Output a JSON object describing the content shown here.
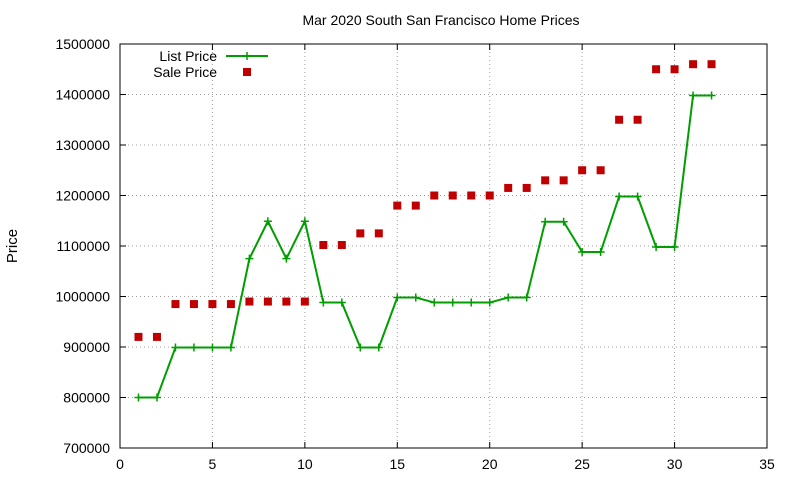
{
  "chart_data": {
    "type": "line",
    "title": "Mar 2020 South San Francisco Home Prices",
    "xlabel": "",
    "ylabel": "Price",
    "xlim": [
      0,
      35
    ],
    "ylim": [
      700000,
      1500000
    ],
    "xticks": [
      0,
      5,
      10,
      15,
      20,
      25,
      30,
      35
    ],
    "yticks": [
      700000,
      800000,
      900000,
      1000000,
      1100000,
      1200000,
      1300000,
      1400000,
      1500000
    ],
    "grid": true,
    "legend_position": "top-left",
    "x": [
      1,
      2,
      3,
      4,
      5,
      6,
      7,
      8,
      9,
      10,
      11,
      12,
      13,
      14,
      15,
      16,
      17,
      18,
      19,
      20,
      21,
      22,
      23,
      24,
      25,
      26,
      27,
      28,
      29,
      30,
      31,
      32
    ],
    "series": [
      {
        "name": "List Price",
        "style": "line-with-plus-markers",
        "color": "#009e00",
        "values": [
          800000,
          800000,
          899000,
          899000,
          899000,
          899000,
          1075000,
          1149000,
          1075000,
          1149000,
          988000,
          988000,
          899000,
          899000,
          998000,
          998000,
          988000,
          988000,
          988000,
          988000,
          998000,
          998000,
          1148000,
          1148000,
          1088000,
          1088000,
          1198000,
          1198000,
          1098000,
          1098000,
          1398000,
          1398000
        ]
      },
      {
        "name": "Sale Price",
        "style": "square-markers",
        "color": "#c00000",
        "values": [
          920000,
          920000,
          985000,
          985000,
          985000,
          985000,
          990000,
          990000,
          990000,
          990000,
          1102000,
          1102000,
          1125000,
          1125000,
          1180000,
          1180000,
          1200000,
          1200000,
          1200000,
          1200000,
          1215000,
          1215000,
          1230000,
          1230000,
          1250000,
          1250000,
          1350000,
          1350000,
          1450000,
          1450000,
          1460000,
          1460000
        ]
      }
    ]
  }
}
